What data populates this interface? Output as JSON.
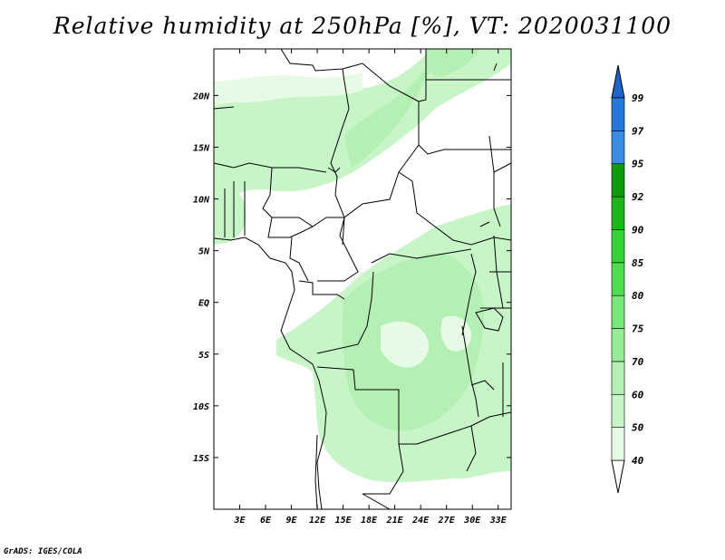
{
  "title": "Relative humidity at 250hPa [%], VT: 2020031100",
  "credit": "GrADS: IGES/COLA",
  "map": {
    "lon_range": [
      0,
      34.5
    ],
    "lat_range": [
      -20,
      24.5
    ],
    "lon_ticks": [
      {
        "value": 3,
        "label": "3E"
      },
      {
        "value": 6,
        "label": "6E"
      },
      {
        "value": 9,
        "label": "9E"
      },
      {
        "value": 12,
        "label": "12E"
      },
      {
        "value": 15,
        "label": "15E"
      },
      {
        "value": 18,
        "label": "18E"
      },
      {
        "value": 21,
        "label": "21E"
      },
      {
        "value": 24,
        "label": "24E"
      },
      {
        "value": 27,
        "label": "27E"
      },
      {
        "value": 30,
        "label": "30E"
      },
      {
        "value": 33,
        "label": "33E"
      }
    ],
    "lat_ticks": [
      {
        "value": 20,
        "label": "20N"
      },
      {
        "value": 15,
        "label": "15N"
      },
      {
        "value": 10,
        "label": "10N"
      },
      {
        "value": 5,
        "label": "5N"
      },
      {
        "value": 0,
        "label": "EQ"
      },
      {
        "value": -5,
        "label": "5S"
      },
      {
        "value": -10,
        "label": "10S"
      },
      {
        "value": -15,
        "label": "15S"
      }
    ]
  },
  "colorbar": {
    "levels": [
      {
        "label": "40",
        "color": "#e6fae6"
      },
      {
        "label": "50",
        "color": "#c8f5c8"
      },
      {
        "label": "60",
        "color": "#b4f0b4"
      },
      {
        "label": "70",
        "color": "#96eb96"
      },
      {
        "label": "75",
        "color": "#78e678"
      },
      {
        "label": "80",
        "color": "#50dc50"
      },
      {
        "label": "85",
        "color": "#37d237"
      },
      {
        "label": "90",
        "color": "#1eb41e"
      },
      {
        "label": "92",
        "color": "#0f9b0f"
      },
      {
        "label": "95",
        "color": "#3c8ce6"
      },
      {
        "label": "97",
        "color": "#2878dc"
      },
      {
        "label": "99",
        "color": ""
      }
    ],
    "below_color": "#ffffff",
    "above_color": "#1e64c8"
  }
}
